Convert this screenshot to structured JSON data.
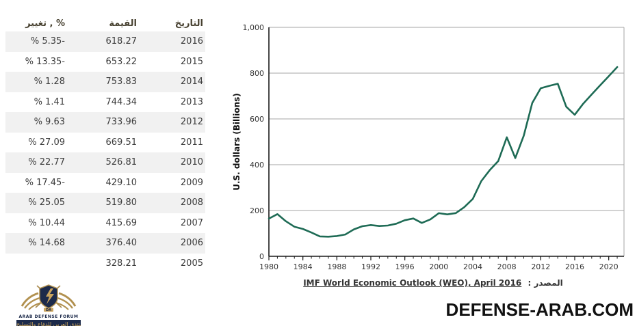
{
  "table": {
    "headers": {
      "date": "التاريخ",
      "value": "القيمة",
      "change": "تغيير , %"
    },
    "rows": [
      {
        "date": "2016",
        "value": "618.27",
        "change": "% 5.35-"
      },
      {
        "date": "2015",
        "value": "653.22",
        "change": "% 13.35-"
      },
      {
        "date": "2014",
        "value": "753.83",
        "change": "% 1.28"
      },
      {
        "date": "2013",
        "value": "744.34",
        "change": "% 1.41"
      },
      {
        "date": "2012",
        "value": "733.96",
        "change": "% 9.63"
      },
      {
        "date": "2011",
        "value": "669.51",
        "change": "% 27.09"
      },
      {
        "date": "2010",
        "value": "526.81",
        "change": "% 22.77"
      },
      {
        "date": "2009",
        "value": "429.10",
        "change": "% 17.45-"
      },
      {
        "date": "2008",
        "value": "519.80",
        "change": "% 25.05"
      },
      {
        "date": "2007",
        "value": "415.69",
        "change": "% 10.44"
      },
      {
        "date": "2006",
        "value": "376.40",
        "change": "% 14.68"
      },
      {
        "date": "2005",
        "value": "328.21",
        "change": ""
      }
    ]
  },
  "chart_data": {
    "type": "line",
    "title": "",
    "xlabel": "",
    "ylabel": "U.S. dollars (Billions)",
    "ylim": [
      0,
      1000
    ],
    "xlim": [
      1980,
      2021.8
    ],
    "grid": true,
    "line_color": "#1e6b55",
    "grid_color": "#a6a6a6",
    "y_ticks": [
      {
        "label": "0",
        "v": 0
      },
      {
        "label": "200",
        "v": 200
      },
      {
        "label": "400",
        "v": 400
      },
      {
        "label": "600",
        "v": 600
      },
      {
        "label": "800",
        "v": 800
      },
      {
        "label": "1,000",
        "v": 1000
      }
    ],
    "x_major_ticks": [
      1980,
      1984,
      1988,
      1992,
      1996,
      2000,
      2004,
      2008,
      2012,
      2016,
      2020
    ],
    "series": [
      {
        "name": "Value (U.S. dollars, Billions)",
        "x": [
          1980,
          1981,
          1982,
          1983,
          1984,
          1985,
          1986,
          1987,
          1988,
          1989,
          1990,
          1991,
          1992,
          1993,
          1994,
          1995,
          1996,
          1997,
          1998,
          1999,
          2000,
          2001,
          2002,
          2003,
          2004,
          2005,
          2006,
          2007,
          2008,
          2009,
          2010,
          2011,
          2012,
          2013,
          2014,
          2015,
          2016,
          2017,
          2018,
          2019,
          2020,
          2021
        ],
        "y": [
          164.54,
          184.29,
          153.24,
          129.18,
          119.3,
          103.9,
          86.96,
          85.7,
          88.26,
          95.34,
          117.63,
          131.34,
          136.3,
          132.15,
          134.33,
          142.46,
          157.74,
          164.99,
          145.77,
          160.96,
          188.44,
          183.01,
          188.55,
          214.57,
          250.34,
          328.21,
          376.4,
          415.69,
          519.8,
          429.1,
          526.81,
          669.51,
          733.96,
          744.34,
          753.83,
          653.22,
          618.27,
          666.58,
          707.02,
          747.23,
          786.65,
          826.55
        ]
      }
    ]
  },
  "source": {
    "label": "المصدر :",
    "link": "IMF World Economic Outlook (WEO), April 2016"
  },
  "footer": {
    "site": "DEFENSE-ARAB.COM"
  },
  "logo": {
    "initials": "DA",
    "name": "ARAB DEFENSE FORUM",
    "arabic": "المنتدى العربي للدفاع والتسليح"
  }
}
